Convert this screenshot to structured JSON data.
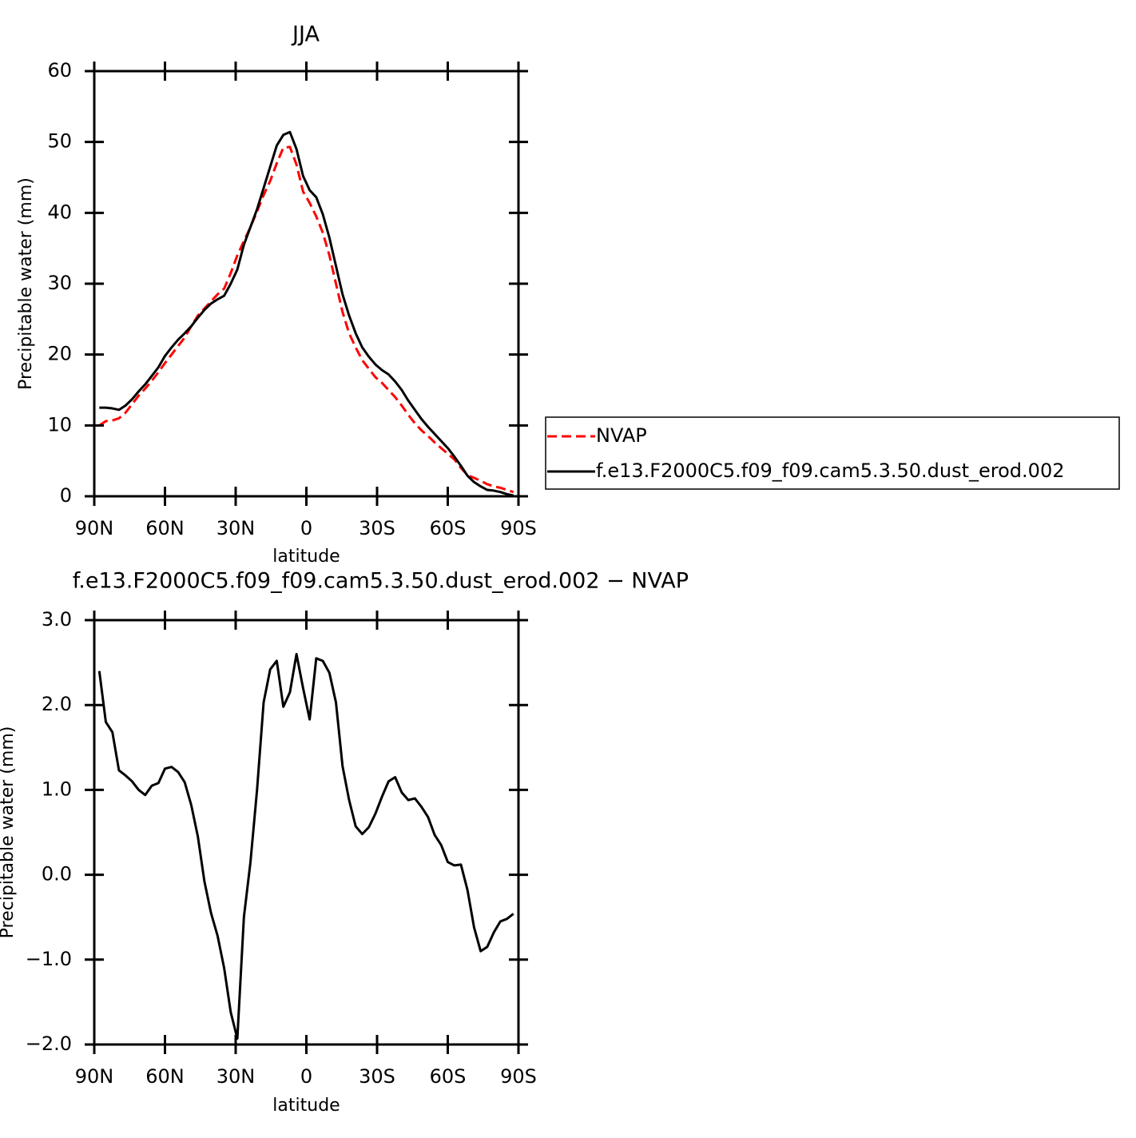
{
  "chart_data": [
    {
      "type": "line",
      "title": "JJA",
      "xlabel": "latitude",
      "ylabel": "Precipitable water (mm)",
      "x": [
        87.86,
        85.1,
        82.31,
        79.53,
        76.74,
        73.95,
        71.16,
        68.37,
        65.58,
        62.79,
        60.0,
        57.21,
        54.42,
        51.63,
        48.84,
        46.04,
        43.25,
        40.46,
        37.67,
        34.88,
        32.09,
        29.3,
        26.51,
        23.72,
        20.93,
        18.14,
        15.35,
        12.56,
        9.77,
        6.98,
        4.19,
        1.4,
        -1.4,
        -4.19,
        -6.98,
        -9.77,
        -12.56,
        -15.35,
        -18.14,
        -20.93,
        -23.72,
        -26.51,
        -29.3,
        -32.09,
        -34.88,
        -37.67,
        -40.46,
        -43.25,
        -46.04,
        -48.84,
        -51.63,
        -54.42,
        -57.21,
        -60.0,
        -62.79,
        -65.58,
        -68.37,
        -71.16,
        -73.95,
        -76.74,
        -79.53,
        -82.31,
        -85.1,
        -87.86
      ],
      "series": [
        {
          "name": "NVAP",
          "color": "#ff0000",
          "style": "dashed",
          "values": [
            10.0,
            10.6,
            10.7,
            11.0,
            11.8,
            13.0,
            14.2,
            15.2,
            16.3,
            17.5,
            18.8,
            20.0,
            21.2,
            22.4,
            24.0,
            25.5,
            26.5,
            27.5,
            28.5,
            29.3,
            31.5,
            34.0,
            36.0,
            38.0,
            40.2,
            42.5,
            44.5,
            47.0,
            49.2,
            49.3,
            46.8,
            43.0,
            41.4,
            39.5,
            37.2,
            34.0,
            30.0,
            26.0,
            23.0,
            21.0,
            19.2,
            18.0,
            16.8,
            16.0,
            15.0,
            14.0,
            12.8,
            11.5,
            10.3,
            9.3,
            8.5,
            7.6,
            6.8,
            6.0,
            5.2,
            4.0,
            3.0,
            2.6,
            2.2,
            1.7,
            1.4,
            1.2,
            0.9,
            0.6
          ]
        },
        {
          "name": "f.e13.F2000C5.f09_f09.cam5.3.50.dust_erod.002",
          "color": "#000000",
          "style": "solid",
          "values": [
            12.5,
            12.5,
            12.4,
            12.2,
            12.8,
            13.7,
            14.8,
            15.8,
            17.0,
            18.2,
            19.8,
            21.0,
            22.1,
            23.0,
            24.0,
            25.2,
            26.3,
            27.2,
            27.8,
            28.3,
            30.0,
            32.0,
            35.5,
            38.0,
            40.5,
            43.5,
            46.5,
            49.5,
            51.0,
            51.4,
            49.0,
            45.2,
            43.2,
            42.2,
            39.8,
            36.5,
            32.5,
            28.5,
            25.5,
            23.0,
            21.0,
            19.7,
            18.6,
            17.8,
            17.2,
            16.2,
            15.0,
            13.5,
            12.2,
            10.9,
            9.8,
            8.8,
            7.8,
            6.8,
            5.6,
            4.3,
            2.9,
            2.0,
            1.4,
            0.9,
            0.8,
            0.6,
            0.3,
            0.1
          ]
        }
      ],
      "xlim": [
        90,
        -90
      ],
      "xticks": [
        {
          "value": 90,
          "label": "90N"
        },
        {
          "value": 60,
          "label": "60N"
        },
        {
          "value": 30,
          "label": "30N"
        },
        0,
        {
          "value": -30,
          "label": "30S"
        },
        {
          "value": -60,
          "label": "60S"
        },
        {
          "value": -90,
          "label": "90S"
        }
      ],
      "ylim": [
        0,
        60
      ],
      "yticks": [
        0,
        10,
        20,
        30,
        40,
        50,
        60
      ],
      "legend": "right"
    },
    {
      "type": "line",
      "title": "f.e13.F2000C5.f09_f09.cam5.3.50.dust_erod.002 − NVAP",
      "xlabel": "latitude",
      "ylabel": "Precipitable water (mm)",
      "x": [
        87.86,
        85.1,
        82.31,
        79.53,
        76.74,
        73.95,
        71.16,
        68.37,
        65.58,
        62.79,
        60.0,
        57.21,
        54.42,
        51.63,
        48.84,
        46.04,
        43.25,
        40.46,
        37.67,
        34.88,
        32.09,
        29.3,
        26.51,
        23.72,
        20.93,
        18.14,
        15.35,
        12.56,
        9.77,
        6.98,
        4.19,
        1.4,
        -1.4,
        -4.19,
        -6.98,
        -9.77,
        -12.56,
        -15.35,
        -18.14,
        -20.93,
        -23.72,
        -26.51,
        -29.3,
        -32.09,
        -34.88,
        -37.67,
        -40.46,
        -43.25,
        -46.04,
        -48.84,
        -51.63,
        -54.42,
        -57.21,
        -60.0,
        -62.79,
        -65.58,
        -68.37,
        -71.16,
        -73.95,
        -76.74,
        -79.53,
        -82.31,
        -85.1,
        -87.86
      ],
      "series": [
        {
          "color": "#000000",
          "style": "solid",
          "values": [
            2.4,
            1.8,
            1.68,
            1.23,
            1.17,
            1.1,
            1.0,
            0.94,
            1.05,
            1.08,
            1.25,
            1.27,
            1.21,
            1.09,
            0.82,
            0.45,
            -0.08,
            -0.45,
            -0.72,
            -1.1,
            -1.62,
            -1.93,
            -0.5,
            0.15,
            1.0,
            2.03,
            2.42,
            2.52,
            1.98,
            2.15,
            2.6,
            2.2,
            1.83,
            2.55,
            2.52,
            2.38,
            2.03,
            1.28,
            0.88,
            0.57,
            0.48,
            0.56,
            0.72,
            0.92,
            1.1,
            1.15,
            0.97,
            0.88,
            0.9,
            0.8,
            0.68,
            0.47,
            0.35,
            0.15,
            0.11,
            0.12,
            -0.18,
            -0.62,
            -0.9,
            -0.85,
            -0.68,
            -0.55,
            -0.52,
            -0.46
          ]
        }
      ],
      "xlim": [
        90,
        -90
      ],
      "xticks": [
        {
          "value": 90,
          "label": "90N"
        },
        {
          "value": 60,
          "label": "60N"
        },
        {
          "value": 30,
          "label": "30N"
        },
        0,
        {
          "value": -30,
          "label": "30S"
        },
        {
          "value": -60,
          "label": "60S"
        },
        {
          "value": -90,
          "label": "90S"
        }
      ],
      "ylim": [
        -2,
        3
      ],
      "yticks": [
        {
          "value": -2,
          "label": "−2.0"
        },
        {
          "value": -1,
          "label": "−1.0"
        },
        {
          "value": 0,
          "label": "0.0"
        },
        {
          "value": 1,
          "label": "1.0"
        },
        {
          "value": 2,
          "label": "2.0"
        },
        {
          "value": 3,
          "label": "3.0"
        }
      ]
    }
  ]
}
